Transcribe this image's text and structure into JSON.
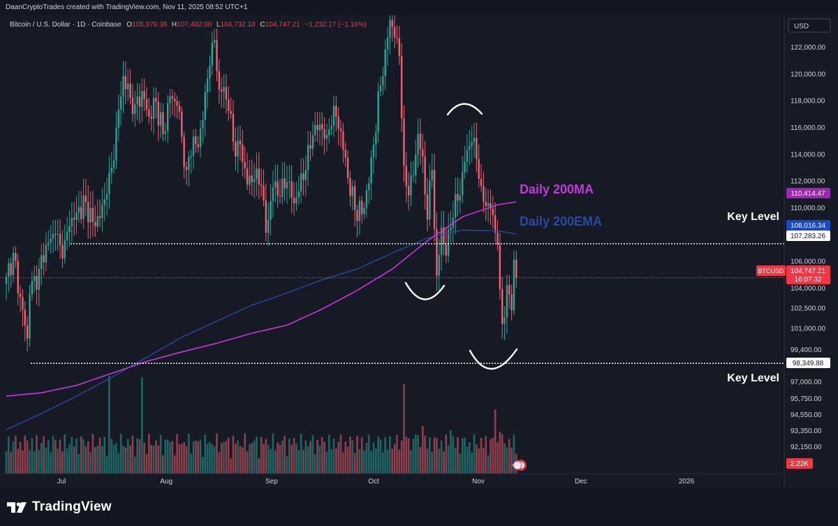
{
  "header": {
    "credit": "DaanCryptoTrades created with TradingView.com, Nov 11, 2025 08:52 UTC+1"
  },
  "legend": {
    "symbol": "Bitcoin / U.S. Dollar · 1D · Coinbase",
    "o_label": "O",
    "o_value": "105,979.38",
    "h_label": "H",
    "h_value": "107,482.00",
    "l_label": "L",
    "l_value": "104,732.18",
    "c_label": "C",
    "c_value": "104,747.21",
    "change": "−1,232.17 (−1.16%)"
  },
  "currency_button": "USD",
  "annotations": {
    "ma_label": "Daily 200MA",
    "ema_label": "Daily 200EMA",
    "key_level_top": "Key Level",
    "key_level_bottom": "Key Level"
  },
  "price_badges": {
    "ma_value": "110,414.47",
    "ema_value": "108,016.34",
    "key_top_value": "107,283.26",
    "ticker": "BTCUSD",
    "last_value": "104,747.21",
    "countdown": "16:07:32",
    "key_bottom_value": "98,349.88",
    "volume_value": "2.22K"
  },
  "footer": {
    "logo_text": "TradingView"
  },
  "colors": {
    "up": "#26a69a",
    "down": "#f0616d",
    "ma": "#c539d8",
    "ema": "#2a4aa0",
    "background": "#161a25",
    "axis_text": "#d1d4dc",
    "ticker_badge": "#f23645"
  },
  "chart_data": {
    "type": "candlestick",
    "title": "Bitcoin / U.S. Dollar · 1D · Coinbase",
    "x_ticks": [
      "Jul",
      "Aug",
      "Sep",
      "Oct",
      "Nov",
      "Dec",
      "2026"
    ],
    "y_ticks": [
      "122,000.00",
      "120,000.00",
      "118,000.00",
      "116,000.00",
      "114,000.00",
      "112,000.00",
      "110,000.00",
      "108,000.00",
      "106,000.00",
      "104,000.00",
      "102,500.00",
      "101,000.00",
      "99,400.00",
      "97,000.00",
      "95,750.00",
      "94,550.00",
      "93,350.00",
      "92,150.00"
    ],
    "y_range": [
      91500,
      124000
    ],
    "horizontal_levels": [
      107283.26,
      98349.88
    ],
    "last_close": 104747.21,
    "anchor_closes": [
      [
        0,
        104800
      ],
      [
        3,
        106600
      ],
      [
        6,
        103300
      ],
      [
        9,
        100200
      ],
      [
        10,
        103500
      ],
      [
        14,
        105400
      ],
      [
        17,
        107200
      ],
      [
        21,
        108000
      ],
      [
        24,
        106200
      ],
      [
        27,
        108600
      ],
      [
        30,
        109600
      ],
      [
        34,
        110400
      ],
      [
        37,
        108900
      ],
      [
        40,
        109200
      ],
      [
        43,
        111000
      ],
      [
        46,
        113500
      ],
      [
        48,
        117300
      ],
      [
        50,
        119800
      ],
      [
        53,
        118200
      ],
      [
        55,
        117700
      ],
      [
        58,
        118700
      ],
      [
        61,
        116800
      ],
      [
        64,
        117900
      ],
      [
        67,
        115500
      ],
      [
        70,
        118300
      ],
      [
        73,
        117600
      ],
      [
        77,
        112800
      ],
      [
        80,
        115300
      ],
      [
        82,
        114500
      ],
      [
        85,
        118600
      ],
      [
        87,
        120600
      ],
      [
        89,
        122500
      ],
      [
        91,
        118800
      ],
      [
        93,
        119000
      ],
      [
        95,
        117200
      ],
      [
        98,
        113800
      ],
      [
        100,
        114700
      ],
      [
        103,
        111700
      ],
      [
        106,
        112100
      ],
      [
        109,
        111600
      ],
      [
        111,
        108100
      ],
      [
        114,
        111500
      ],
      [
        117,
        110800
      ],
      [
        120,
        111900
      ],
      [
        123,
        110300
      ],
      [
        125,
        111200
      ],
      [
        128,
        112800
      ],
      [
        131,
        115400
      ],
      [
        134,
        116200
      ],
      [
        137,
        115400
      ],
      [
        140,
        117600
      ],
      [
        143,
        115700
      ],
      [
        146,
        112200
      ],
      [
        149,
        109800
      ],
      [
        152,
        109500
      ],
      [
        155,
        111800
      ],
      [
        157,
        114700
      ],
      [
        160,
        119100
      ],
      [
        162,
        121800
      ],
      [
        164,
        124000
      ],
      [
        166,
        122700
      ],
      [
        168,
        121300
      ],
      [
        170,
        113100
      ],
      [
        172,
        110900
      ],
      [
        174,
        112400
      ],
      [
        176,
        115500
      ],
      [
        178,
        113800
      ],
      [
        180,
        109100
      ],
      [
        182,
        112800
      ],
      [
        184,
        104900
      ],
      [
        186,
        108500
      ],
      [
        188,
        106400
      ],
      [
        190,
        108500
      ],
      [
        192,
        111000
      ],
      [
        194,
        110900
      ],
      [
        196,
        113400
      ],
      [
        198,
        114600
      ],
      [
        199,
        114900
      ],
      [
        201,
        113600
      ],
      [
        203,
        111600
      ],
      [
        205,
        110100
      ],
      [
        207,
        109900
      ],
      [
        209,
        108100
      ],
      [
        210,
        107200
      ],
      [
        211,
        103900
      ],
      [
        212,
        101300
      ],
      [
        213,
        101800
      ],
      [
        214,
        104200
      ],
      [
        215,
        103500
      ],
      [
        216,
        102300
      ],
      [
        217,
        106100
      ],
      [
        218,
        104747.21
      ]
    ],
    "ma200_points": [
      [
        0,
        95900
      ],
      [
        15,
        96150
      ],
      [
        30,
        96700
      ],
      [
        45,
        97600
      ],
      [
        60,
        98500
      ],
      [
        75,
        99200
      ],
      [
        90,
        99850
      ],
      [
        105,
        100600
      ],
      [
        120,
        101200
      ],
      [
        135,
        102400
      ],
      [
        150,
        103800
      ],
      [
        165,
        105400
      ],
      [
        180,
        107500
      ],
      [
        195,
        109300
      ],
      [
        210,
        110200
      ],
      [
        218,
        110414.47
      ]
    ],
    "ema200_points": [
      [
        0,
        93400
      ],
      [
        15,
        94600
      ],
      [
        30,
        95900
      ],
      [
        45,
        97300
      ],
      [
        60,
        98800
      ],
      [
        75,
        100300
      ],
      [
        90,
        101500
      ],
      [
        105,
        102700
      ],
      [
        120,
        103600
      ],
      [
        135,
        104600
      ],
      [
        150,
        105400
      ],
      [
        165,
        106600
      ],
      [
        180,
        107700
      ],
      [
        195,
        108300
      ],
      [
        210,
        108250
      ],
      [
        218,
        108016.34
      ]
    ],
    "volume_value_last": "2.22K"
  }
}
